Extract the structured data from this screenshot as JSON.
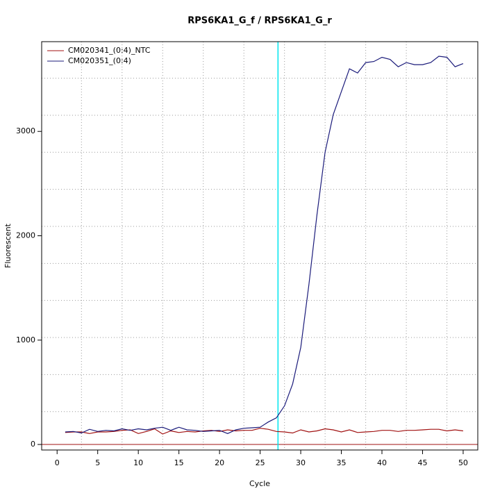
{
  "chart_data": {
    "type": "line",
    "title": "RPS6KA1_G_f / RPS6KA1_G_r",
    "xlabel": "Cycle",
    "ylabel": "Fluorescent",
    "x": [
      1,
      2,
      3,
      4,
      5,
      6,
      7,
      8,
      9,
      10,
      11,
      12,
      13,
      14,
      15,
      16,
      17,
      18,
      19,
      20,
      21,
      22,
      23,
      24,
      25,
      26,
      27,
      28,
      29,
      30,
      31,
      32,
      33,
      34,
      35,
      36,
      37,
      38,
      39,
      40,
      41,
      42,
      43,
      44,
      45,
      46,
      47,
      48,
      49,
      50
    ],
    "series": [
      {
        "name": "CM020341_(0:4)_NTC",
        "color": "#a01010",
        "values": [
          115,
          120,
          120,
          105,
          120,
          120,
          125,
          135,
          140,
          105,
          125,
          150,
          100,
          130,
          115,
          125,
          120,
          130,
          135,
          125,
          140,
          130,
          135,
          135,
          155,
          145,
          125,
          120,
          110,
          140,
          120,
          130,
          150,
          140,
          120,
          140,
          115,
          120,
          125,
          135,
          135,
          125,
          135,
          135,
          140,
          145,
          145,
          130,
          140,
          130
        ]
      },
      {
        "name": "CM020351_(0:4)",
        "color": "#1a1a7a",
        "values": [
          120,
          125,
          110,
          145,
          125,
          135,
          130,
          150,
          135,
          150,
          140,
          155,
          165,
          135,
          165,
          140,
          135,
          125,
          130,
          135,
          105,
          140,
          155,
          160,
          165,
          215,
          255,
          370,
          580,
          930,
          1530,
          2200,
          2800,
          3160,
          3380,
          3600,
          3560,
          3660,
          3670,
          3710,
          3690,
          3620,
          3660,
          3640,
          3640,
          3660,
          3720,
          3710,
          3620,
          3650
        ]
      }
    ],
    "xlim": [
      -1.9,
      51.8
    ],
    "ylim": [
      -53,
      3860
    ],
    "xticks": [
      0,
      5,
      10,
      15,
      20,
      25,
      30,
      35,
      40,
      45,
      50
    ],
    "yticks": [
      0,
      1000,
      2000,
      3000
    ],
    "xgrid": [
      3,
      8,
      13,
      18,
      23,
      28,
      33,
      38,
      43,
      48
    ],
    "ygrid": [
      315,
      670,
      1025,
      1380,
      1735,
      2090,
      2445,
      2800,
      3155,
      3510
    ],
    "grid": true,
    "legend": "top-left",
    "vline": 27.2,
    "vline_color": "#00e5ee",
    "hline": 0,
    "hline_color": "#a01010"
  }
}
